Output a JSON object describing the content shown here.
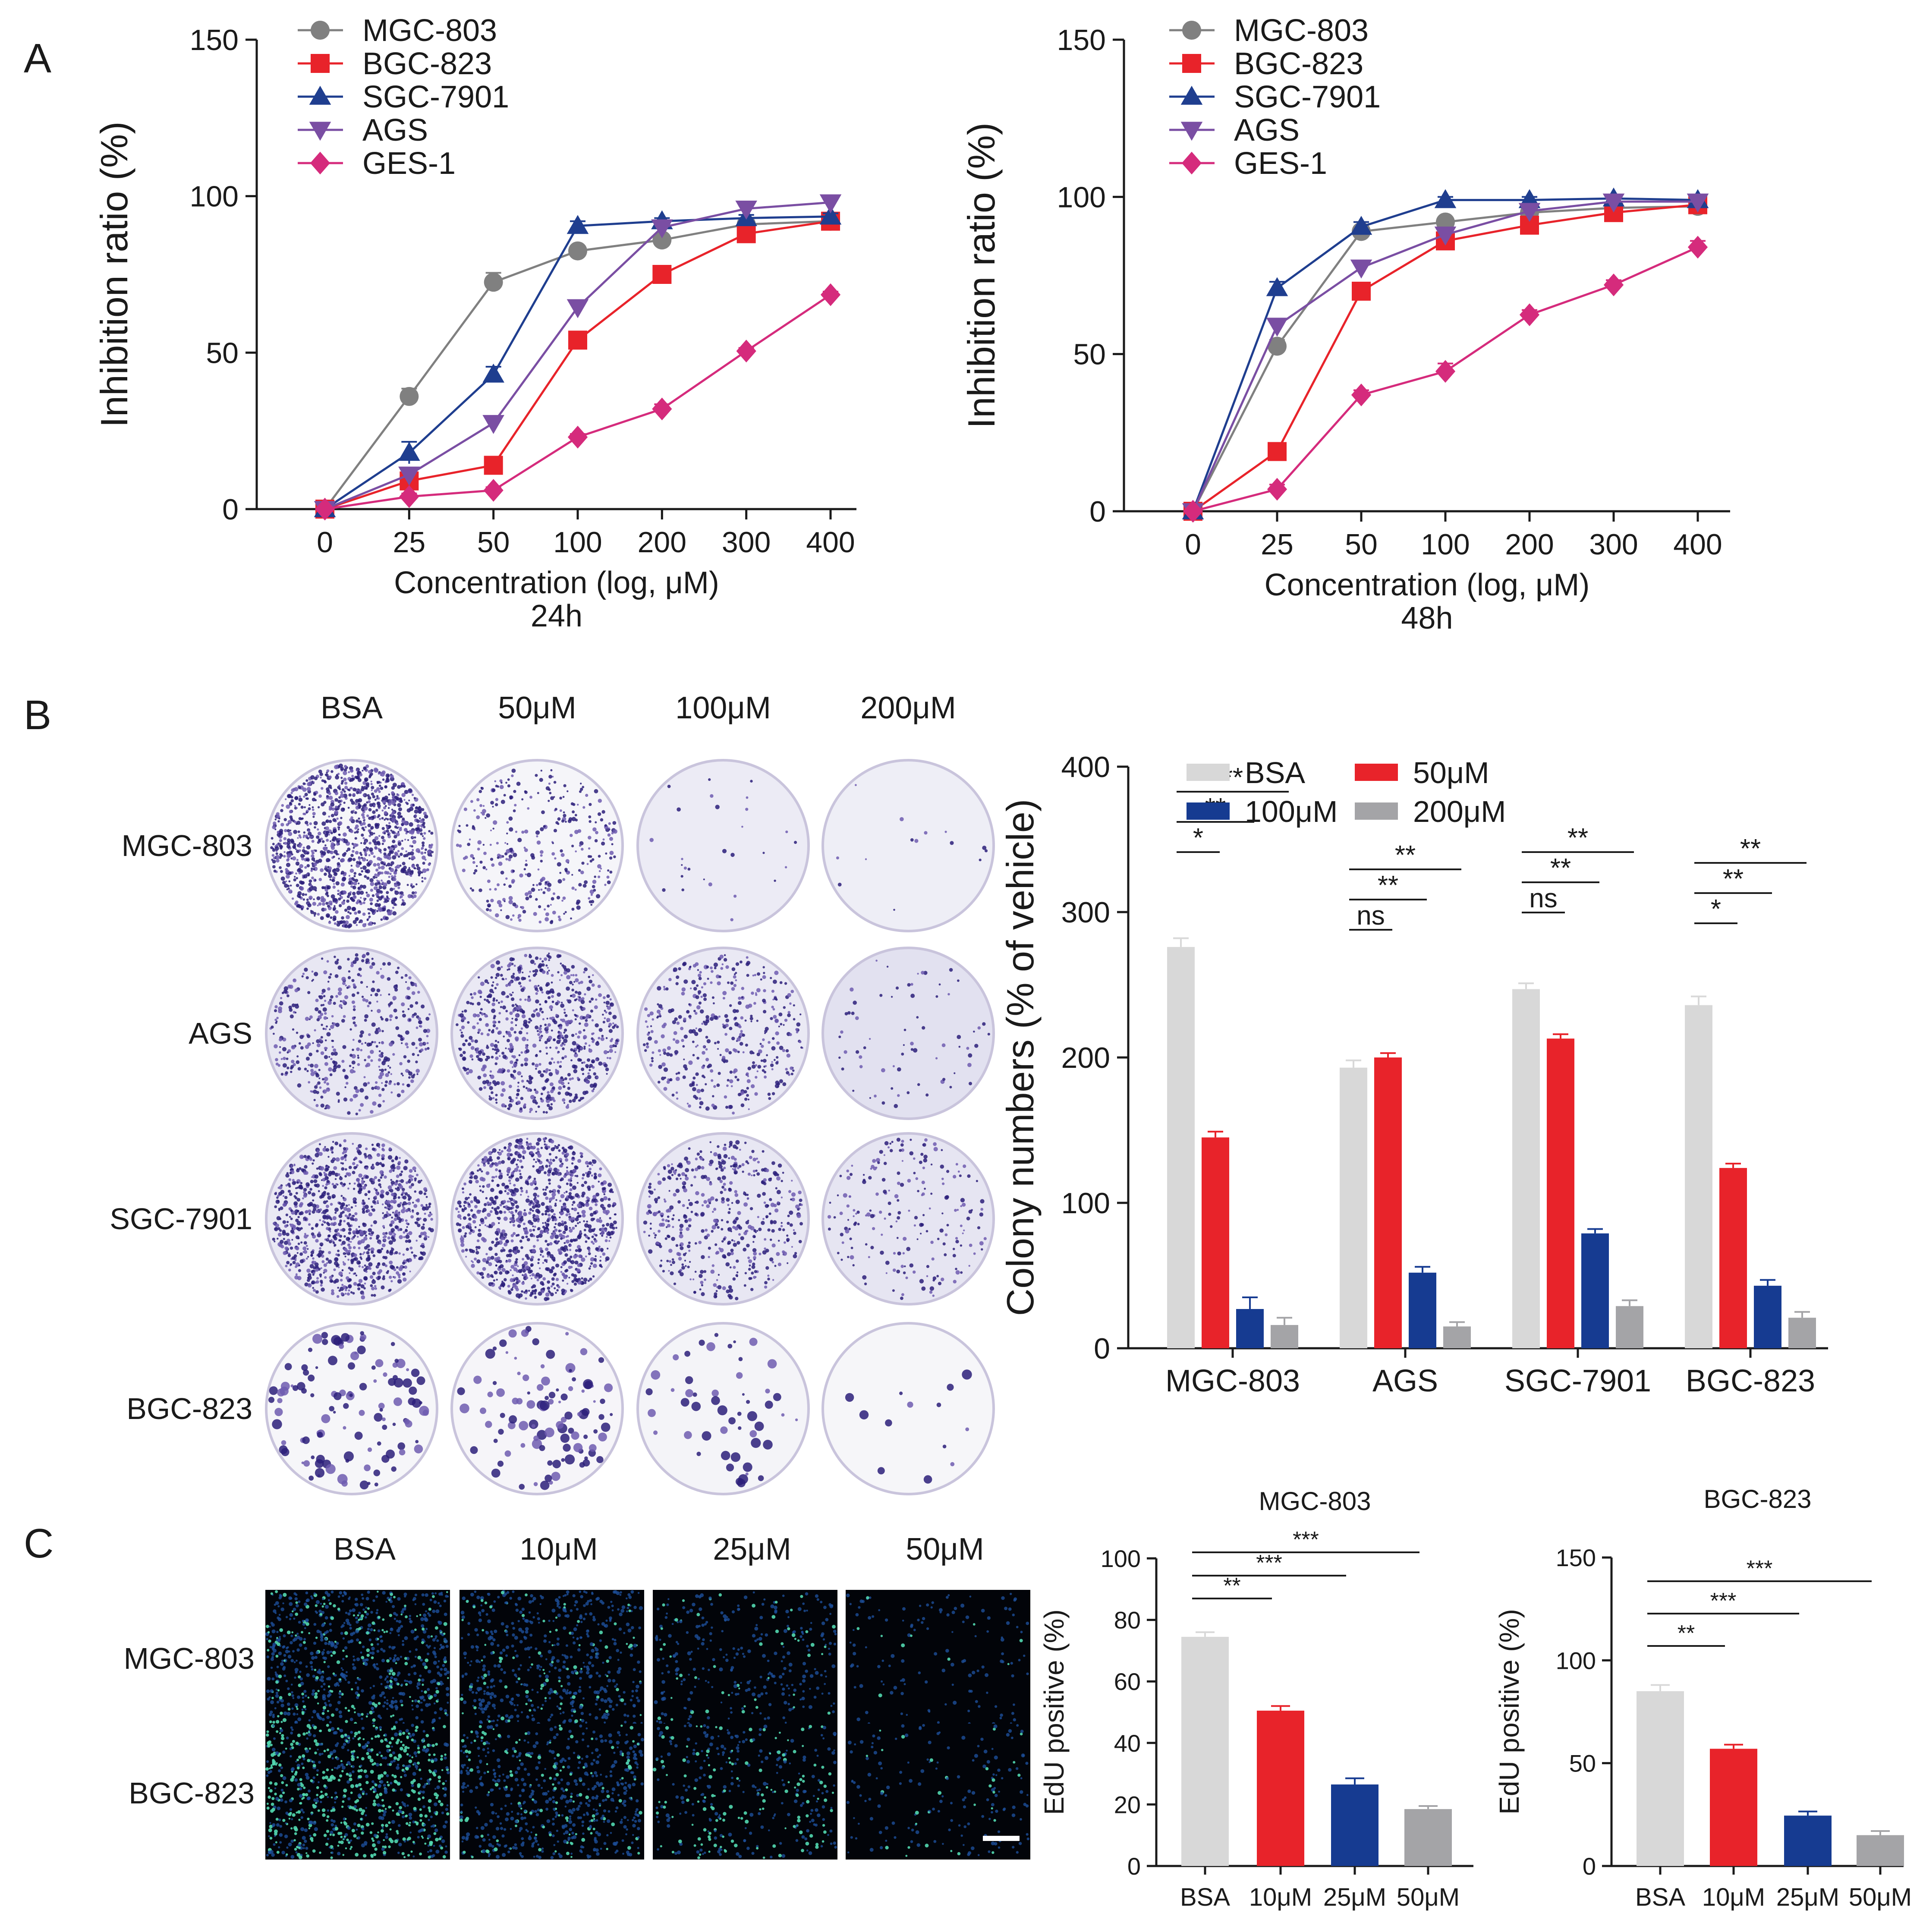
{
  "panels": {
    "a": "A",
    "b": "B",
    "c": "C"
  },
  "colors": {
    "MGC-803": "#808080",
    "BGC-823": "#e8232a",
    "SGC-7901": "#1f3e8f",
    "AGS": "#7a4ea3",
    "GES-1": "#d52b7c",
    "bar_BSA": "#d8d8d8",
    "bar_50": "#e8232a",
    "bar_100": "#163b91",
    "bar_200": "#a4a4a7",
    "plate_dark": "#2b1f7a",
    "plate_mid": "#6f5cb0",
    "edu_blue": "#1d4f9a",
    "edu_green": "#52d8b0"
  },
  "plates": {
    "conditions": [
      "BSA",
      "50μM",
      "100μM",
      "200μM"
    ],
    "rows": [
      "MGC-803",
      "AGS",
      "SGC-7901",
      "BGC-823"
    ],
    "density": [
      [
        0.95,
        0.25,
        0.02,
        0.01
      ],
      [
        0.35,
        0.55,
        0.3,
        0.05
      ],
      [
        0.75,
        0.8,
        0.35,
        0.15
      ],
      [
        0.45,
        0.4,
        0.2,
        0.05
      ]
    ],
    "background_tint": [
      [
        0.05,
        0.08,
        0.3,
        0.25
      ],
      [
        0.4,
        0.35,
        0.35,
        0.55
      ],
      [
        0.35,
        0.3,
        0.4,
        0.45
      ],
      [
        0.05,
        0.06,
        0.1,
        0.04
      ]
    ]
  },
  "edu_images": {
    "conditions": [
      "BSA",
      "10μM",
      "25μM",
      "50μM"
    ],
    "rows": [
      "MGC-803",
      "BGC-823"
    ],
    "density": [
      [
        0.9,
        0.65,
        0.35,
        0.15
      ],
      [
        0.95,
        0.7,
        0.4,
        0.2
      ]
    ],
    "green_fraction": [
      [
        0.25,
        0.15,
        0.15,
        0.1
      ],
      [
        0.55,
        0.2,
        0.35,
        0.15
      ]
    ]
  },
  "chart_data": [
    {
      "id": "A-24h",
      "type": "line",
      "title": "24h",
      "xlabel": "Concentration (log, μM)",
      "ylabel": "Inhibition ratio (%)",
      "categories": [
        "0",
        "25",
        "50",
        "100",
        "200",
        "300",
        "400"
      ],
      "ylim": [
        0,
        150
      ],
      "yticks": [
        "0",
        "50",
        "100",
        "150"
      ],
      "legend": "top-left",
      "series": [
        {
          "name": "MGC-803",
          "marker": "circle",
          "values": [
            0,
            36,
            72.5,
            82.5,
            86,
            91,
            92
          ],
          "errors": [
            0,
            2.5,
            3,
            1.5,
            1,
            1,
            1
          ]
        },
        {
          "name": "BGC-823",
          "marker": "square",
          "values": [
            0,
            9,
            14,
            54,
            75,
            88,
            92
          ],
          "errors": [
            0,
            2,
            1.5,
            2,
            1.5,
            1.5,
            1.5
          ]
        },
        {
          "name": "SGC-7901",
          "marker": "triangle-up",
          "values": [
            0,
            18,
            43,
            90.5,
            92,
            93,
            93.5
          ],
          "errors": [
            0,
            3.5,
            2.5,
            1.5,
            1,
            1,
            1
          ]
        },
        {
          "name": "AGS",
          "marker": "triangle-down",
          "values": [
            0,
            11,
            27.5,
            64.5,
            90,
            96,
            98
          ],
          "errors": [
            0,
            1.5,
            2,
            2,
            1,
            1,
            1
          ]
        },
        {
          "name": "GES-1",
          "marker": "diamond",
          "values": [
            0,
            4,
            6,
            23,
            32,
            50.5,
            68.5
          ],
          "errors": [
            0,
            1,
            1,
            1,
            1.5,
            1,
            1
          ]
        }
      ]
    },
    {
      "id": "A-48h",
      "type": "line",
      "title": "48h",
      "xlabel": "Concentration (log, μM)",
      "ylabel": "Inhibition ratio (%)",
      "categories": [
        "0",
        "25",
        "50",
        "100",
        "200",
        "300",
        "400"
      ],
      "ylim": [
        0,
        150
      ],
      "yticks": [
        "0",
        "50",
        "100",
        "150"
      ],
      "legend": "top-left",
      "series": [
        {
          "name": "MGC-803",
          "marker": "circle",
          "values": [
            0,
            52.5,
            89,
            92,
            95,
            96.5,
            97
          ],
          "errors": [
            0,
            2,
            1.5,
            1.5,
            1,
            1,
            1
          ]
        },
        {
          "name": "BGC-823",
          "marker": "square",
          "values": [
            0,
            19,
            70,
            86,
            91,
            95,
            97.5
          ],
          "errors": [
            0,
            1.5,
            2,
            1.5,
            1.5,
            1,
            1
          ]
        },
        {
          "name": "SGC-7901",
          "marker": "triangle-up",
          "values": [
            0,
            71,
            90.5,
            99,
            99,
            99.5,
            99
          ],
          "errors": [
            0,
            2,
            1.5,
            1,
            1,
            1,
            1
          ]
        },
        {
          "name": "AGS",
          "marker": "triangle-down",
          "values": [
            0,
            59,
            77.5,
            88,
            95.5,
            98.5,
            98.5
          ],
          "errors": [
            0,
            2,
            1.5,
            1,
            1,
            1,
            1
          ]
        },
        {
          "name": "GES-1",
          "marker": "diamond",
          "values": [
            0,
            7,
            37,
            44.5,
            62.5,
            72,
            84
          ],
          "errors": [
            0,
            1.5,
            1.5,
            2.5,
            1.5,
            1.5,
            2
          ]
        }
      ]
    },
    {
      "id": "B-colony",
      "type": "bar",
      "ylabel": "Colony numbers (% of vehicle)",
      "categories": [
        "MGC-803",
        "AGS",
        "SGC-7901",
        "BGC-823"
      ],
      "ylim": [
        0,
        400
      ],
      "yticks": [
        "0",
        "100",
        "200",
        "300",
        "400"
      ],
      "legend": "top",
      "series": [
        {
          "name": "BSA",
          "values": [
            276,
            193,
            247,
            236
          ],
          "errors": [
            6,
            5,
            4,
            6
          ]
        },
        {
          "name": "50μM",
          "values": [
            145,
            200,
            213,
            124
          ],
          "errors": [
            4,
            3,
            3,
            3
          ]
        },
        {
          "name": "100μM",
          "values": [
            27,
            52,
            79,
            43
          ],
          "errors": [
            8,
            4,
            3,
            4
          ]
        },
        {
          "name": "200μM",
          "values": [
            16,
            15,
            29,
            21
          ],
          "errors": [
            5,
            3,
            4,
            4
          ]
        }
      ],
      "significance": [
        {
          "group": 0,
          "to": 1,
          "label": "*",
          "level": 0
        },
        {
          "group": 0,
          "to": 2,
          "label": "**",
          "level": 1
        },
        {
          "group": 0,
          "to": 3,
          "label": "**",
          "level": 2
        },
        {
          "group": 1,
          "to": 1,
          "label": "ns",
          "level": 0
        },
        {
          "group": 1,
          "to": 2,
          "label": "**",
          "level": 1
        },
        {
          "group": 1,
          "to": 3,
          "label": "**",
          "level": 2
        },
        {
          "group": 2,
          "to": 1,
          "label": "ns",
          "level": 0
        },
        {
          "group": 2,
          "to": 2,
          "label": "**",
          "level": 1
        },
        {
          "group": 2,
          "to": 3,
          "label": "**",
          "level": 2
        },
        {
          "group": 3,
          "to": 1,
          "label": "*",
          "level": 0
        },
        {
          "group": 3,
          "to": 2,
          "label": "**",
          "level": 1
        },
        {
          "group": 3,
          "to": 3,
          "label": "**",
          "level": 2
        }
      ]
    },
    {
      "id": "C-MGC",
      "type": "bar",
      "title": "MGC-803",
      "ylabel": "EdU positive (%)",
      "categories": [
        "BSA",
        "10μM",
        "25μM",
        "50μM"
      ],
      "values": [
        74.5,
        50.5,
        26.5,
        18.5
      ],
      "errors": [
        1.5,
        1.5,
        2,
        1
      ],
      "ylim": [
        0,
        100
      ],
      "yticks": [
        "0",
        "20",
        "40",
        "60",
        "80",
        "100"
      ],
      "significance": [
        {
          "to": 1,
          "label": "**",
          "level": 0
        },
        {
          "to": 2,
          "label": "***",
          "level": 1
        },
        {
          "to": 3,
          "label": "***",
          "level": 2
        }
      ]
    },
    {
      "id": "C-BGC",
      "type": "bar",
      "title": "BGC-823",
      "ylabel": "EdU positive (%)",
      "categories": [
        "BSA",
        "10μM",
        "25μM",
        "50μM"
      ],
      "values": [
        85,
        57,
        24.5,
        15
      ],
      "errors": [
        3,
        2,
        2,
        2
      ],
      "ylim": [
        0,
        150
      ],
      "yticks": [
        "0",
        "50",
        "100",
        "150"
      ],
      "significance": [
        {
          "to": 1,
          "label": "**",
          "level": 0
        },
        {
          "to": 2,
          "label": "***",
          "level": 1
        },
        {
          "to": 3,
          "label": "***",
          "level": 2
        }
      ]
    }
  ]
}
